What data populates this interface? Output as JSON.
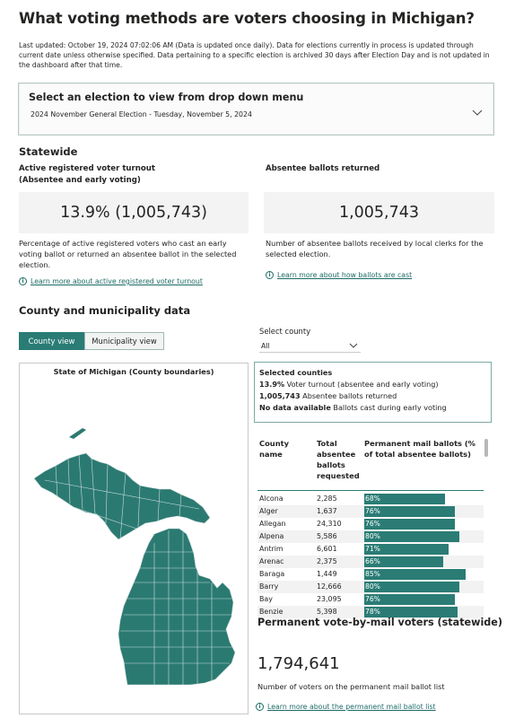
{
  "page": {
    "title": "What voting methods are voters choosing in Michigan?",
    "updated_text": "Last updated: October 19, 2024 07:02:06 AM (Data is updated once daily). Data for elections currently in process is updated through current date unless otherwise specified. Data pertaining to a specific election is archived 30 days after Election Day and is not updated in the dashboard after that time."
  },
  "election": {
    "label": "Select an election to view from drop down menu",
    "selected": "2024 November General Election - Tuesday, November 5, 2024"
  },
  "statewide": {
    "heading": "Statewide",
    "turnout": {
      "title_line1": "Active registered voter turnout",
      "title_line2": "(Absentee and early voting)",
      "value": "13.9% (1,005,743)",
      "description": "Percentage of active registered voters who cast an early voting ballot or returned an absentee ballot in the selected election.",
      "link": "Learn more about active registered voter turnout"
    },
    "absentee": {
      "title": "Absentee ballots returned",
      "value": "1,005,743",
      "description": "Number of absentee ballots received by local clerks for the selected election.",
      "link": "Learn more about how ballots are cast"
    }
  },
  "county_section": {
    "heading": "County and municipality data",
    "tab_county": "County view",
    "tab_municipality": "Municipality view",
    "select_label": "Select county",
    "select_value": "All",
    "map_title": "State of Michigan (County boundaries)",
    "selected": {
      "heading": "Selected counties",
      "line1_bold": "13.9%",
      "line1_rest": "Voter turnout (absentee and early voting)",
      "line2_bold": "1,005,743",
      "line2_rest": "Absentee ballots returned",
      "line3_bold": "No data available",
      "line3_rest": "Ballots cast during early voting"
    },
    "table": {
      "col1": "County name",
      "col2": "Total absentee ballots requested",
      "col3": "Permanent mail ballots (% of total absentee ballots)",
      "rows": [
        {
          "county": "Alcona",
          "requested": "2,285",
          "pct": 68
        },
        {
          "county": "Alger",
          "requested": "1,637",
          "pct": 76
        },
        {
          "county": "Allegan",
          "requested": "24,310",
          "pct": 76
        },
        {
          "county": "Alpena",
          "requested": "5,586",
          "pct": 80
        },
        {
          "county": "Antrim",
          "requested": "6,601",
          "pct": 71
        },
        {
          "county": "Arenac",
          "requested": "2,375",
          "pct": 66
        },
        {
          "county": "Baraga",
          "requested": "1,449",
          "pct": 85
        },
        {
          "county": "Barry",
          "requested": "12,666",
          "pct": 80
        },
        {
          "county": "Bay",
          "requested": "23,095",
          "pct": 76
        },
        {
          "county": "Benzie",
          "requested": "5,398",
          "pct": 78
        }
      ]
    }
  },
  "pvm": {
    "heading": "Permanent vote-by-mail voters (statewide)",
    "value": "1,794,641",
    "description": "Number of voters on the permanent mail ballot list",
    "link": "Learn more about the permanent mail ballot list"
  },
  "colors": {
    "accent": "#2a7c75",
    "map_fill": "#2b7a72",
    "link": "#1c6b66"
  },
  "icons": {
    "chevron": "chevron-down-icon",
    "info": "info-icon"
  }
}
